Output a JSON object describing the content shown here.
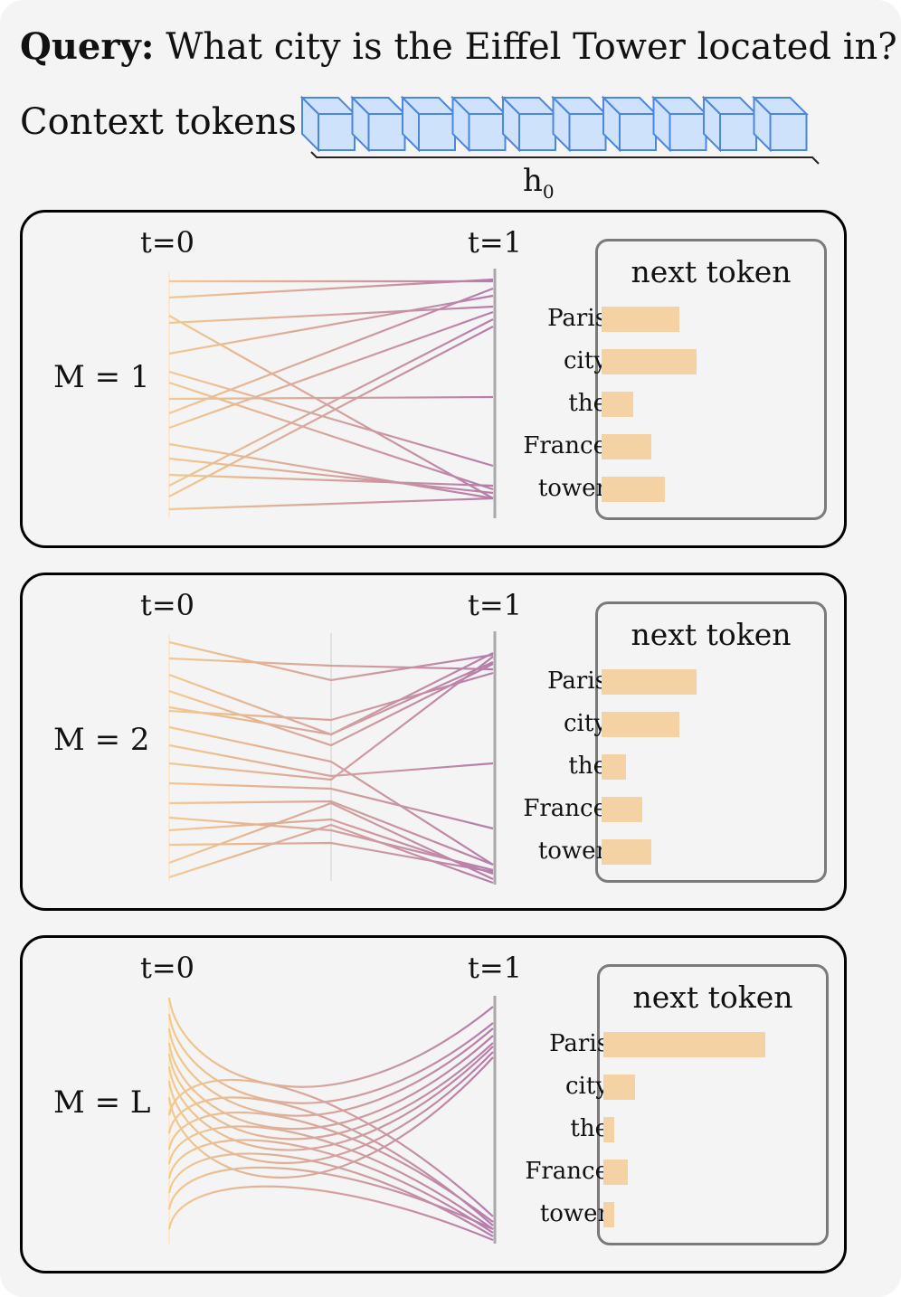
{
  "query": {
    "bold_label": "Query:",
    "text": "What city is the Eiffel Tower located in?"
  },
  "context": {
    "label": "Context tokens",
    "sub_main": "h",
    "sub_index": "0",
    "token_count": 10
  },
  "colors": {
    "bar": "#f4d2a3",
    "line_start": "#f3c98e",
    "line_end": "#b67cac",
    "cube_fill": "#cfe2fb",
    "cube_stroke": "#4b86df"
  },
  "panels": [
    {
      "m_label": "M = 1",
      "t0_label": "t=0",
      "t1_label": "t=1",
      "next_token_title": "next token",
      "tokens": [
        {
          "label": "Paris",
          "score": 0.44
        },
        {
          "label": "city",
          "score": 0.54
        },
        {
          "label": "the",
          "score": 0.18
        },
        {
          "label": "France",
          "score": 0.28
        },
        {
          "label": "tower",
          "score": 0.36
        }
      ]
    },
    {
      "m_label": "M = 2",
      "t0_label": "t=0",
      "t1_label": "t=1",
      "next_token_title": "next token",
      "tokens": [
        {
          "label": "Paris",
          "score": 0.54
        },
        {
          "label": "city",
          "score": 0.44
        },
        {
          "label": "the",
          "score": 0.14
        },
        {
          "label": "France",
          "score": 0.23
        },
        {
          "label": "tower",
          "score": 0.28
        }
      ]
    },
    {
      "m_label": "M = L",
      "t0_label": "t=0",
      "t1_label": "t=1",
      "next_token_title": "next token",
      "tokens": [
        {
          "label": "Paris",
          "score": 0.92
        },
        {
          "label": "city",
          "score": 0.18
        },
        {
          "label": "the",
          "score": 0.06
        },
        {
          "label": "France",
          "score": 0.14
        },
        {
          "label": "tower",
          "score": 0.06
        }
      ]
    }
  ]
}
